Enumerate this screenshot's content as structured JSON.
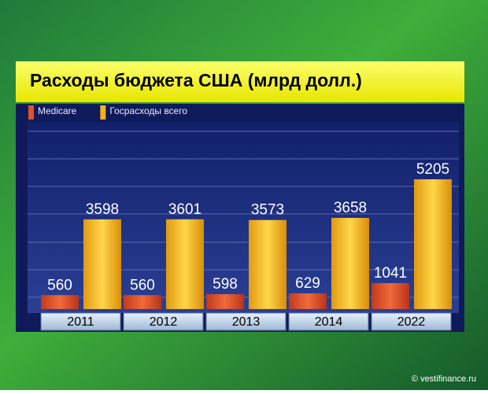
{
  "chart_data": {
    "type": "bar",
    "title": "Расходы бюджета США (млрд долл.)",
    "categories": [
      "2011",
      "2012",
      "2013",
      "2014",
      "2022"
    ],
    "series": [
      {
        "name": "Medicare",
        "color": "#e0502a",
        "values": [
          560,
          560,
          598,
          629,
          1041
        ]
      },
      {
        "name": "Госрасходы всего",
        "color": "#f2b31c",
        "values": [
          3598,
          3601,
          3573,
          3658,
          5205
        ]
      }
    ],
    "ylim": [
      0,
      7350
    ],
    "credit": "© vestifinance.ru"
  }
}
